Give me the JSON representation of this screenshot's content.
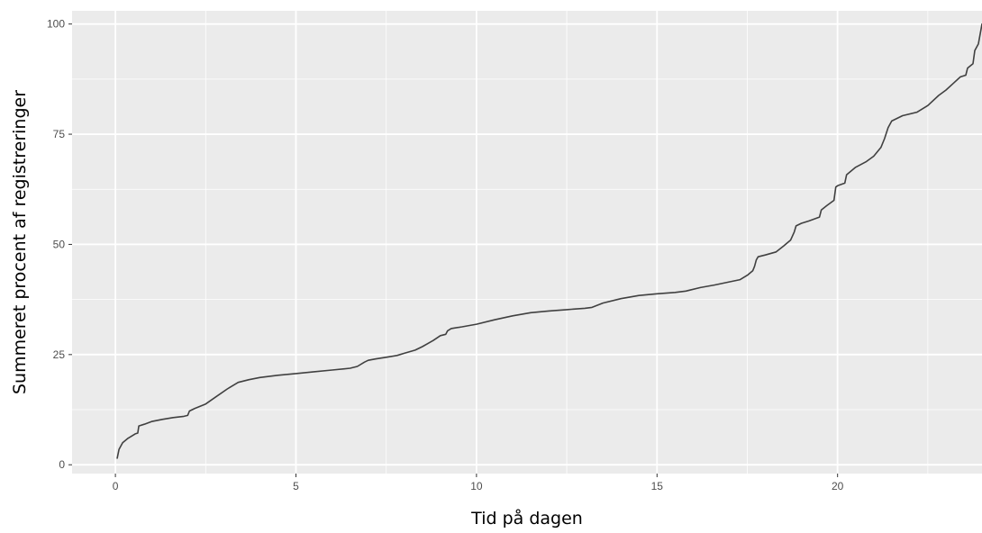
{
  "chart_data": {
    "type": "line",
    "title": "",
    "xlabel": "Tid på dagen",
    "ylabel": "Summeret procent af registreringer",
    "xlim": [
      -1.2,
      24.0
    ],
    "ylim": [
      -2,
      103
    ],
    "xticks": [
      0,
      5,
      10,
      15,
      20
    ],
    "yticks": [
      0,
      25,
      50,
      75,
      100
    ],
    "grid": true,
    "background": "#ebebeb",
    "grid_color": "#ffffff",
    "line_color": "#404040",
    "x": [
      0.05,
      0.1,
      0.2,
      0.35,
      0.55,
      0.62,
      0.65,
      0.8,
      1.0,
      1.3,
      1.6,
      1.9,
      2.0,
      2.05,
      2.2,
      2.5,
      2.8,
      3.1,
      3.4,
      3.7,
      4.0,
      4.5,
      5.0,
      5.5,
      6.0,
      6.5,
      6.7,
      6.9,
      7.0,
      7.2,
      7.5,
      7.8,
      8.0,
      8.3,
      8.5,
      8.8,
      9.0,
      9.15,
      9.2,
      9.3,
      9.6,
      10.0,
      10.5,
      11.0,
      11.5,
      12.0,
      12.5,
      13.0,
      13.2,
      13.5,
      14.0,
      14.5,
      15.0,
      15.5,
      15.8,
      16.2,
      16.6,
      17.0,
      17.3,
      17.5,
      17.65,
      17.7,
      17.75,
      17.8,
      18.0,
      18.3,
      18.5,
      18.7,
      18.8,
      18.85,
      19.0,
      19.2,
      19.5,
      19.55,
      19.7,
      19.9,
      19.95,
      20.0,
      20.2,
      20.25,
      20.5,
      20.8,
      21.0,
      21.2,
      21.3,
      21.4,
      21.5,
      21.8,
      22.2,
      22.5,
      22.8,
      23.0,
      23.2,
      23.4,
      23.55,
      23.6,
      23.75,
      23.8,
      23.9,
      24.0
    ],
    "y": [
      1.5,
      3.5,
      5.0,
      6.0,
      7.0,
      7.2,
      8.8,
      9.2,
      9.8,
      10.3,
      10.7,
      11.0,
      11.2,
      12.2,
      12.8,
      13.8,
      15.5,
      17.2,
      18.7,
      19.3,
      19.8,
      20.3,
      20.7,
      21.1,
      21.5,
      21.9,
      22.3,
      23.3,
      23.7,
      24.0,
      24.4,
      24.8,
      25.3,
      26.0,
      26.8,
      28.2,
      29.3,
      29.6,
      30.4,
      30.9,
      31.3,
      31.9,
      32.9,
      33.8,
      34.5,
      34.9,
      35.2,
      35.5,
      35.7,
      36.7,
      37.7,
      38.4,
      38.8,
      39.1,
      39.4,
      40.2,
      40.8,
      41.5,
      42.0,
      43.0,
      44.0,
      45.0,
      46.5,
      47.2,
      47.6,
      48.3,
      49.6,
      51.0,
      52.8,
      54.2,
      54.8,
      55.3,
      56.2,
      57.8,
      58.8,
      60.0,
      63.0,
      63.3,
      63.9,
      65.8,
      67.5,
      68.8,
      70.0,
      72.0,
      74.0,
      76.5,
      78.0,
      79.2,
      80.0,
      81.5,
      83.8,
      85.0,
      86.5,
      88.0,
      88.4,
      90.0,
      91.0,
      94.0,
      95.5,
      100.0
    ]
  }
}
